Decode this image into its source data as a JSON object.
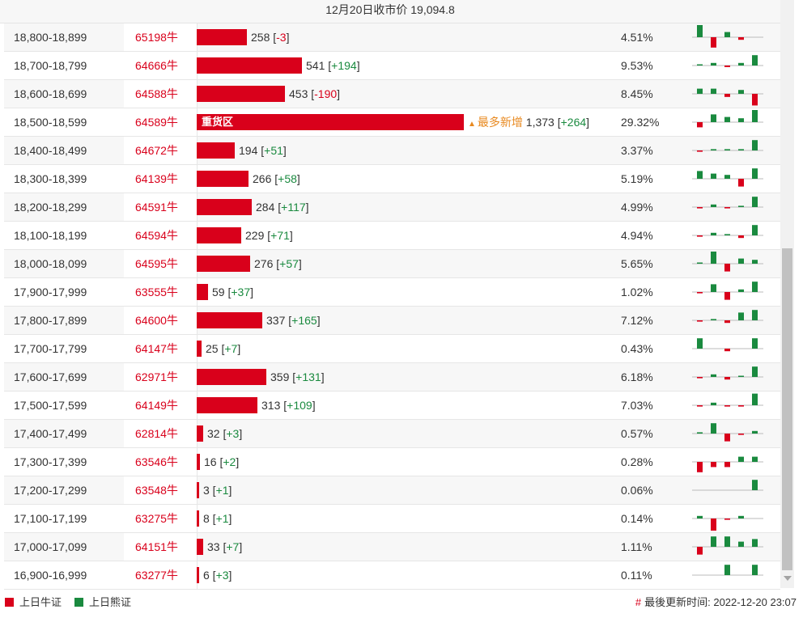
{
  "header": {
    "title": "12月20日收市价 19,094.8"
  },
  "heavy_label": "重货区",
  "most_new_label": "最多新增",
  "rows": [
    {
      "range": "18,800-18,899",
      "code": "65198牛",
      "count": "258",
      "change": "-3",
      "pct": "4.51%",
      "spark": [
        5,
        -4,
        2,
        -1,
        0
      ]
    },
    {
      "range": "18,700-18,799",
      "code": "64666牛",
      "count": "541",
      "change": "+194",
      "pct": "9.53%",
      "spark": [
        0.4,
        1,
        -0.6,
        1,
        4
      ]
    },
    {
      "range": "18,600-18,699",
      "code": "64588牛",
      "count": "453",
      "change": "-190",
      "pct": "8.45%",
      "spark": [
        2,
        2,
        -1.2,
        1.5,
        -4.5
      ]
    },
    {
      "range": "18,500-18,599",
      "code": "64589牛",
      "count": "1,373",
      "change": "+264",
      "pct": "29.32%",
      "heavy": true,
      "most_new": true,
      "spark": [
        -2,
        3,
        2,
        1.5,
        5
      ]
    },
    {
      "range": "18,400-18,499",
      "code": "64672牛",
      "count": "194",
      "change": "+51",
      "pct": "3.37%",
      "spark": [
        -0.5,
        0.5,
        0.5,
        0.5,
        4
      ]
    },
    {
      "range": "18,300-18,399",
      "code": "64139牛",
      "count": "266",
      "change": "+58",
      "pct": "5.19%",
      "spark": [
        3,
        2,
        1.5,
        -3,
        4
      ]
    },
    {
      "range": "18,200-18,299",
      "code": "64591牛",
      "count": "284",
      "change": "+117",
      "pct": "4.99%",
      "spark": [
        -0.5,
        1,
        -0.5,
        0.5,
        4
      ]
    },
    {
      "range": "18,100-18,199",
      "code": "64594牛",
      "count": "229",
      "change": "+71",
      "pct": "4.94%",
      "spark": [
        -0.5,
        1,
        0.5,
        -1,
        4
      ]
    },
    {
      "range": "18,000-18,099",
      "code": "64595牛",
      "count": "276",
      "change": "+57",
      "pct": "5.65%",
      "spark": [
        0.3,
        5,
        -3,
        2,
        1.5
      ]
    },
    {
      "range": "17,900-17,999",
      "code": "63555牛",
      "count": "59",
      "change": "+37",
      "pct": "1.02%",
      "spark": [
        -0.5,
        3,
        -3,
        1,
        4
      ]
    },
    {
      "range": "17,800-17,899",
      "code": "64600牛",
      "count": "337",
      "change": "+165",
      "pct": "7.12%",
      "spark": [
        -0.5,
        0.5,
        -1,
        3,
        4
      ]
    },
    {
      "range": "17,700-17,799",
      "code": "64147牛",
      "count": "25",
      "change": "+7",
      "pct": "0.43%",
      "spark": [
        4,
        0,
        -1,
        0,
        4
      ]
    },
    {
      "range": "17,600-17,699",
      "code": "62971牛",
      "count": "359",
      "change": "+131",
      "pct": "6.18%",
      "spark": [
        -0.5,
        1,
        -1,
        0.3,
        4
      ]
    },
    {
      "range": "17,500-17,599",
      "code": "64149牛",
      "count": "313",
      "change": "+109",
      "pct": "7.03%",
      "spark": [
        -0.5,
        1,
        -0.5,
        -0.5,
        4.5
      ]
    },
    {
      "range": "17,400-17,499",
      "code": "62814牛",
      "count": "32",
      "change": "+3",
      "pct": "0.57%",
      "spark": [
        0.5,
        4,
        -3,
        -0.5,
        1
      ]
    },
    {
      "range": "17,300-17,399",
      "code": "63546牛",
      "count": "16",
      "change": "+2",
      "pct": "0.28%",
      "spark": [
        -4,
        -2,
        -2,
        2,
        2
      ]
    },
    {
      "range": "17,200-17,299",
      "code": "63548牛",
      "count": "3",
      "change": "+1",
      "pct": "0.06%",
      "spark": [
        0,
        0,
        0,
        0,
        4
      ]
    },
    {
      "range": "17,100-17,199",
      "code": "63275牛",
      "count": "8",
      "change": "+1",
      "pct": "0.14%",
      "spark": [
        1,
        -5,
        -0.5,
        1,
        0
      ]
    },
    {
      "range": "17,000-17,099",
      "code": "64151牛",
      "count": "33",
      "change": "+7",
      "pct": "1.11%",
      "spark": [
        -3,
        4,
        4,
        2,
        3
      ]
    },
    {
      "range": "16,900-16,999",
      "code": "63277牛",
      "count": "6",
      "change": "+3",
      "pct": "0.11%",
      "spark": [
        0,
        0,
        4,
        0,
        4
      ]
    }
  ],
  "legend": {
    "bull": "上日牛证",
    "bear": "上日熊证"
  },
  "footer": {
    "hash": "#",
    "updated": "最後更新时间: 2022-12-20 23:07"
  },
  "colors": {
    "bull": "#d9001b",
    "bear": "#1a8a3f",
    "accent": "#e8891f"
  }
}
